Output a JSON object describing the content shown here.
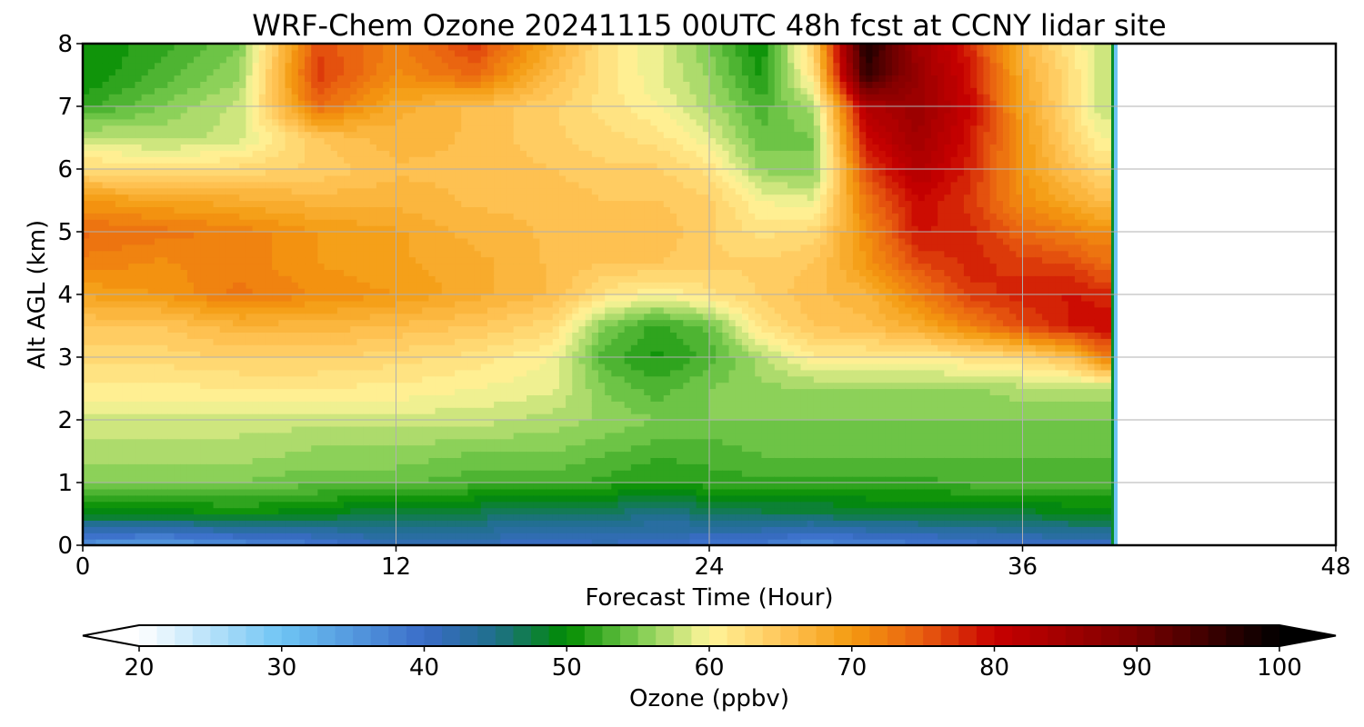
{
  "chart_data": {
    "type": "heatmap",
    "title": "WRF-Chem Ozone  20241115 00UTC 48h fcst at CCNY lidar site",
    "xlabel": "Forecast Time (Hour)",
    "ylabel": "Alt AGL (km)",
    "xlim": [
      0,
      48
    ],
    "ylim": [
      0,
      8
    ],
    "x_ticks": [
      0,
      12,
      24,
      36,
      48
    ],
    "y_ticks": [
      0,
      1,
      2,
      3,
      4,
      5,
      6,
      7,
      8
    ],
    "grid": true,
    "data_end_hour": 39.5,
    "x": [
      0,
      3,
      6,
      9,
      12,
      15,
      18,
      20,
      22,
      24,
      26,
      28,
      30,
      32,
      34,
      36,
      38,
      39
    ],
    "y": [
      0,
      0.5,
      1,
      1.5,
      2,
      2.5,
      3,
      3.5,
      4,
      4.5,
      5,
      5.5,
      6,
      6.5,
      7,
      7.5,
      8
    ],
    "z": [
      [
        35,
        34,
        36,
        38,
        42,
        41,
        40,
        41,
        40,
        39,
        38,
        36,
        37,
        38,
        39,
        40,
        40,
        40
      ],
      [
        49,
        49,
        50,
        49,
        47,
        47,
        46,
        46,
        45,
        46,
        47,
        47,
        48,
        48,
        48,
        48,
        49,
        49
      ],
      [
        55,
        55,
        55,
        54,
        54,
        53,
        53,
        52,
        51,
        52,
        52,
        52,
        52,
        52,
        53,
        53,
        53,
        53
      ],
      [
        57,
        57,
        57,
        56,
        56,
        55,
        55,
        54,
        53,
        53,
        54,
        54,
        54,
        54,
        54,
        54,
        54,
        54
      ],
      [
        58,
        58,
        58,
        58,
        58,
        58,
        57,
        56,
        55,
        55,
        55,
        55,
        55,
        55,
        55,
        55,
        55,
        55
      ],
      [
        61,
        61,
        61,
        61,
        61,
        60,
        59,
        55,
        53,
        55,
        56,
        56,
        56,
        56,
        56,
        57,
        57,
        57
      ],
      [
        63,
        63,
        64,
        64,
        63,
        62,
        60,
        53,
        51,
        53,
        57,
        61,
        61,
        61,
        62,
        63,
        66,
        72
      ],
      [
        65,
        65,
        67,
        67,
        66,
        65,
        63,
        55,
        52,
        54,
        62,
        65,
        66,
        68,
        72,
        76,
        79,
        80
      ],
      [
        69,
        70,
        73,
        71,
        70,
        68,
        66,
        62,
        60,
        62,
        64,
        66,
        67,
        72,
        77,
        78,
        79,
        78
      ],
      [
        72,
        71,
        72,
        70,
        69,
        68,
        66,
        65,
        65,
        64,
        64,
        65,
        70,
        76,
        78,
        77,
        76,
        74
      ],
      [
        74,
        73,
        72,
        70,
        69,
        67,
        66,
        66,
        66,
        64,
        62,
        63,
        71,
        79,
        78,
        74,
        72,
        71
      ],
      [
        70,
        69,
        68,
        67,
        67,
        66,
        66,
        65,
        65,
        64,
        60,
        59,
        73,
        80,
        77,
        71,
        68,
        66
      ],
      [
        63,
        62,
        63,
        64,
        66,
        66,
        65,
        64,
        64,
        62,
        56,
        55,
        76,
        83,
        78,
        70,
        65,
        63
      ],
      [
        58,
        57,
        58,
        65,
        67,
        66,
        64,
        63,
        62,
        59,
        54,
        55,
        80,
        85,
        79,
        70,
        63,
        60
      ],
      [
        52,
        55,
        58,
        74,
        68,
        66,
        64,
        62,
        60,
        57,
        53,
        57,
        83,
        86,
        80,
        69,
        62,
        58
      ],
      [
        50,
        53,
        56,
        77,
        71,
        74,
        66,
        62,
        59,
        56,
        51,
        62,
        96,
        86,
        79,
        68,
        62,
        58
      ],
      [
        50,
        52,
        55,
        76,
        72,
        77,
        68,
        62,
        59,
        55,
        50,
        64,
        98,
        85,
        78,
        67,
        61,
        58
      ]
    ],
    "colorbar": {
      "label": "Ozone  (ppbv)",
      "min": 20,
      "max": 100,
      "ticks": [
        "20",
        "30",
        "40",
        "50",
        "60",
        "70",
        "80",
        "90",
        "100"
      ],
      "extend": "both",
      "color_stops": [
        {
          "v": 20,
          "c": "#ffffff"
        },
        {
          "v": 30,
          "c": "#6ec4f4"
        },
        {
          "v": 40,
          "c": "#3a6cc8"
        },
        {
          "v": 45,
          "c": "#1f6f8a"
        },
        {
          "v": 50,
          "c": "#008c00"
        },
        {
          "v": 55,
          "c": "#7ccc50"
        },
        {
          "v": 60,
          "c": "#fff59a"
        },
        {
          "v": 65,
          "c": "#ffc65a"
        },
        {
          "v": 70,
          "c": "#f49a10"
        },
        {
          "v": 75,
          "c": "#e85d10"
        },
        {
          "v": 80,
          "c": "#c80000"
        },
        {
          "v": 90,
          "c": "#7a0000"
        },
        {
          "v": 100,
          "c": "#000000"
        }
      ]
    }
  }
}
